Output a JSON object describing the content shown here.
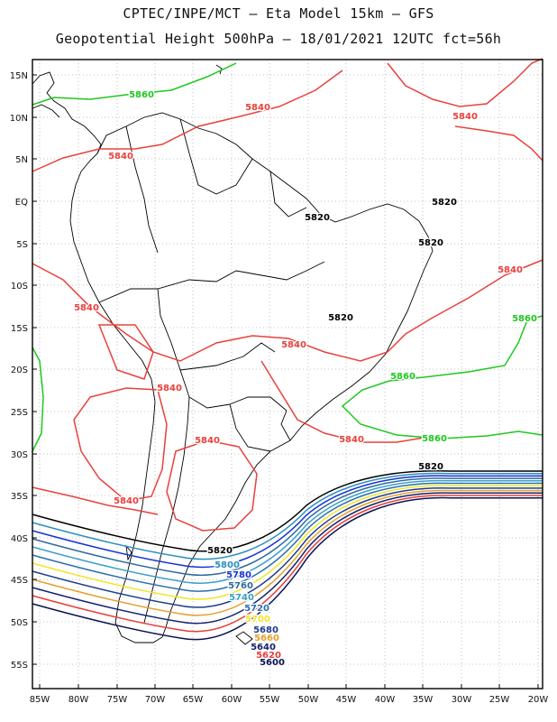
{
  "header": {
    "line1": "CPTEC/INPE/MCT –  Eta Model 15km – GFS",
    "line2": "Geopotential Height 500hPa – 18/01/2021 12UTC fct=56h"
  },
  "axes": {
    "lat_labels": [
      "15N",
      "10N",
      "5N",
      "EQ",
      "5S",
      "10S",
      "15S",
      "20S",
      "25S",
      "30S",
      "35S",
      "40S",
      "45S",
      "50S",
      "55S"
    ],
    "lon_labels": [
      "85W",
      "80W",
      "75W",
      "70W",
      "65W",
      "60W",
      "55W",
      "50W",
      "45W",
      "40W",
      "35W",
      "30W",
      "25W",
      "20W"
    ],
    "grid": "dotted"
  },
  "colors": {
    "c5860": "#1ec81e",
    "c5840": "#e8413c",
    "c5820": "#000000",
    "c5800": "#2a8fc0",
    "c5780": "#1432d2",
    "c5760": "#2d6b9c",
    "c5740": "#3aa0c8",
    "c5720": "#2a6fb0",
    "c5700": "#f0e628",
    "c5680": "#1e3c8c",
    "c5660": "#e6a02a",
    "c5640": "#14236e",
    "c5620": "#e83c3c",
    "c5600": "#0a1450"
  },
  "contour_labels": [
    {
      "text": "5860",
      "color": "c5860"
    },
    {
      "text": "5840",
      "color": "c5840"
    },
    {
      "text": "5840",
      "color": "c5840"
    },
    {
      "text": "5840",
      "color": "c5840"
    },
    {
      "text": "5820",
      "color": "c5820"
    },
    {
      "text": "5820",
      "color": "c5820"
    },
    {
      "text": "5820",
      "color": "c5820"
    },
    {
      "text": "5840",
      "color": "c5840"
    },
    {
      "text": "5840",
      "color": "c5840"
    },
    {
      "text": "5820",
      "color": "c5820"
    },
    {
      "text": "5860",
      "color": "c5860"
    },
    {
      "text": "5840",
      "color": "c5840"
    },
    {
      "text": "5860",
      "color": "c5860"
    },
    {
      "text": "5840",
      "color": "c5840"
    },
    {
      "text": "5840",
      "color": "c5840"
    },
    {
      "text": "5860",
      "color": "c5860"
    },
    {
      "text": "5840",
      "color": "c5840"
    },
    {
      "text": "5820",
      "color": "c5820"
    },
    {
      "text": "5840",
      "color": "c5840"
    },
    {
      "text": "5820",
      "color": "c5820"
    },
    {
      "text": "5800",
      "color": "c5800"
    },
    {
      "text": "5780",
      "color": "c5780"
    },
    {
      "text": "5760",
      "color": "c5760"
    },
    {
      "text": "5740",
      "color": "c5740"
    },
    {
      "text": "5720",
      "color": "c5720"
    },
    {
      "text": "5700",
      "color": "c5700"
    },
    {
      "text": "5680",
      "color": "c5680"
    },
    {
      "text": "5660",
      "color": "c5660"
    },
    {
      "text": "5640",
      "color": "c5640"
    },
    {
      "text": "5620",
      "color": "c5620"
    },
    {
      "text": "5600",
      "color": "c5600"
    }
  ]
}
